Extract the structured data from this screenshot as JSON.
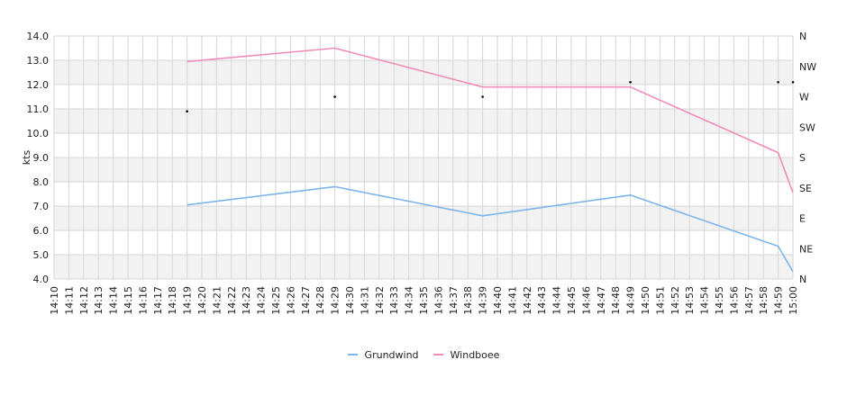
{
  "chart_data": {
    "type": "line",
    "x_start": "14:10",
    "x_end": "15:00",
    "categories": [
      "14:10",
      "14:11",
      "14:12",
      "14:13",
      "14:14",
      "14:15",
      "14:16",
      "14:17",
      "14:18",
      "14:19",
      "14:20",
      "14:21",
      "14:22",
      "14:23",
      "14:24",
      "14:25",
      "14:26",
      "14:27",
      "14:28",
      "14:29",
      "14:30",
      "14:31",
      "14:32",
      "14:33",
      "14:34",
      "14:35",
      "14:36",
      "14:37",
      "14:38",
      "14:39",
      "14:40",
      "14:41",
      "14:42",
      "14:43",
      "14:44",
      "14:45",
      "14:46",
      "14:47",
      "14:48",
      "14:49",
      "14:50",
      "14:51",
      "14:52",
      "14:53",
      "14:54",
      "14:55",
      "14:56",
      "14:57",
      "14:58",
      "14:59",
      "15:00"
    ],
    "ylabel": "kts",
    "ylim": [
      4.0,
      14.0
    ],
    "y_ticks": [
      "4.0",
      "5.0",
      "6.0",
      "7.0",
      "8.0",
      "9.0",
      "10.0",
      "11.0",
      "12.0",
      "13.0",
      "14.0"
    ],
    "y2_ticks": [
      "N",
      "NE",
      "E",
      "SE",
      "S",
      "SW",
      "W",
      "NW",
      "N"
    ],
    "series": [
      {
        "name": "Grundwind",
        "color": "#7cb5ec",
        "points": [
          [
            "14:19",
            7.05
          ],
          [
            "14:29",
            7.8
          ],
          [
            "14:39",
            6.6
          ],
          [
            "14:49",
            7.45
          ],
          [
            "14:59",
            5.35
          ],
          [
            "15:00",
            4.3
          ]
        ]
      },
      {
        "name": "Windboee",
        "color": "#f08cbc",
        "points": [
          [
            "14:19",
            12.95
          ],
          [
            "14:29",
            13.5
          ],
          [
            "14:39",
            11.9
          ],
          [
            "14:49",
            11.9
          ],
          [
            "14:59",
            9.2
          ],
          [
            "15:00",
            7.55
          ]
        ]
      }
    ],
    "direction_markers": [
      {
        "time": "14:19",
        "y": 10.9
      },
      {
        "time": "14:29",
        "y": 11.5
      },
      {
        "time": "14:39",
        "y": 11.5
      },
      {
        "time": "14:49",
        "y": 12.1
      },
      {
        "time": "14:59",
        "y": 12.1
      },
      {
        "time": "15:00",
        "y": 12.1
      }
    ],
    "grid": true,
    "legend": "bottom-center"
  }
}
